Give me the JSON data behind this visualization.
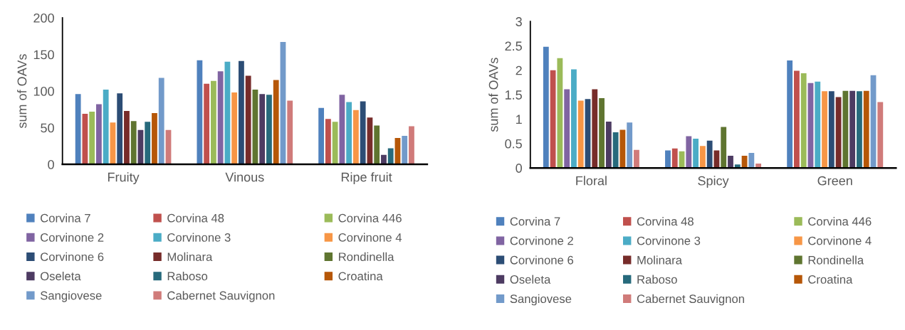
{
  "chart_data": [
    {
      "type": "bar",
      "ylabel": "sum of OAVs",
      "categories": [
        "Fruity",
        "Vinous",
        "Ripe fruit"
      ],
      "ylim": [
        0,
        200
      ],
      "yticks": [
        0,
        50,
        100,
        150,
        200
      ],
      "grid": false,
      "legend": "bottom",
      "series": [
        {
          "name": "Corvina 7",
          "color": "#4f81bd",
          "values": [
            96,
            142,
            77
          ]
        },
        {
          "name": "Corvina 48",
          "color": "#c0504d",
          "values": [
            69,
            110,
            62
          ]
        },
        {
          "name": "Corvina 446",
          "color": "#9bbb59",
          "values": [
            72,
            114,
            58
          ]
        },
        {
          "name": "Corvinone 2",
          "color": "#8064a2",
          "values": [
            82,
            127,
            95
          ]
        },
        {
          "name": "Corvinone 3",
          "color": "#4bacc6",
          "values": [
            102,
            140,
            85
          ]
        },
        {
          "name": "Corvinone 4",
          "color": "#f79646",
          "values": [
            57,
            98,
            74
          ]
        },
        {
          "name": "Corvinone 6",
          "color": "#2c4d75",
          "values": [
            97,
            141,
            86
          ]
        },
        {
          "name": "Molinara",
          "color": "#772c2a",
          "values": [
            73,
            121,
            64
          ]
        },
        {
          "name": "Rondinella",
          "color": "#5f7530",
          "values": [
            59,
            102,
            53
          ]
        },
        {
          "name": "Oseleta",
          "color": "#4d3b62",
          "values": [
            47,
            96,
            13
          ]
        },
        {
          "name": "Raboso",
          "color": "#276a7c",
          "values": [
            58,
            95,
            22
          ]
        },
        {
          "name": "Croatina",
          "color": "#b65708",
          "values": [
            70,
            115,
            36
          ]
        },
        {
          "name": "Sangiovese",
          "color": "#729aca",
          "values": [
            118,
            167,
            39
          ]
        },
        {
          "name": "Cabernet Sauvignon",
          "color": "#d07b7a",
          "values": [
            47,
            87,
            52
          ]
        }
      ]
    },
    {
      "type": "bar",
      "ylabel": "sum of OAVs",
      "categories": [
        "Floral",
        "Spicy",
        "Green"
      ],
      "ylim": [
        0,
        3
      ],
      "yticks": [
        0,
        {
          "value": 0.5,
          "label": "0.5"
        },
        1,
        {
          "value": 1.5,
          "label": "1.5"
        },
        2,
        {
          "value": 2.5,
          "label": "2.5"
        },
        3
      ],
      "grid": false,
      "legend": "bottom",
      "series": [
        {
          "name": "Corvina 7",
          "color": "#4f81bd",
          "values": [
            2.48,
            0.36,
            2.2
          ]
        },
        {
          "name": "Corvina 48",
          "color": "#c0504d",
          "values": [
            2.0,
            0.4,
            1.99
          ]
        },
        {
          "name": "Corvina 446",
          "color": "#9bbb59",
          "values": [
            2.25,
            0.34,
            1.94
          ]
        },
        {
          "name": "Corvinone 2",
          "color": "#8064a2",
          "values": [
            1.61,
            0.65,
            1.74
          ]
        },
        {
          "name": "Corvinone 3",
          "color": "#4bacc6",
          "values": [
            2.02,
            0.6,
            1.77
          ]
        },
        {
          "name": "Corvinone 4",
          "color": "#f79646",
          "values": [
            1.38,
            0.45,
            1.57
          ]
        },
        {
          "name": "Corvinone 6",
          "color": "#2c4d75",
          "values": [
            1.41,
            0.56,
            1.57
          ]
        },
        {
          "name": "Molinara",
          "color": "#772c2a",
          "values": [
            1.61,
            0.36,
            1.45
          ]
        },
        {
          "name": "Rondinella",
          "color": "#5f7530",
          "values": [
            1.43,
            0.84,
            1.58
          ]
        },
        {
          "name": "Oseleta",
          "color": "#4d3b62",
          "values": [
            0.95,
            0.25,
            1.58
          ]
        },
        {
          "name": "Raboso",
          "color": "#276a7c",
          "values": [
            0.73,
            0.07,
            1.57
          ]
        },
        {
          "name": "Croatina",
          "color": "#b65708",
          "values": [
            0.78,
            0.25,
            1.58
          ]
        },
        {
          "name": "Sangiovese",
          "color": "#729aca",
          "values": [
            0.93,
            0.31,
            1.9
          ]
        },
        {
          "name": "Cabernet Sauvignon",
          "color": "#d07b7a",
          "values": [
            0.37,
            0.09,
            1.35
          ]
        }
      ]
    }
  ]
}
